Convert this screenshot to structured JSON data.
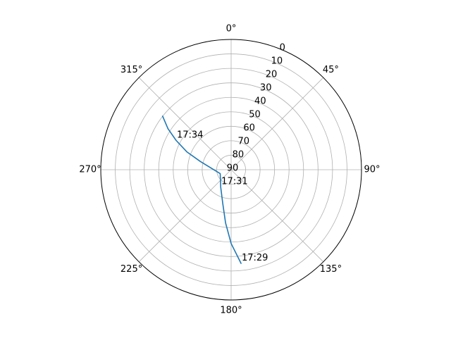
{
  "chart_data": {
    "type": "line",
    "projection": "polar",
    "theta_zero": "N",
    "theta_direction": "clockwise",
    "theta_ticks_deg": [
      0,
      45,
      90,
      135,
      180,
      225,
      270,
      315
    ],
    "theta_tick_labels": [
      "0°",
      "45°",
      "90°",
      "135°",
      "180°",
      "225°",
      "270°",
      "315°"
    ],
    "r_axis": "elevation",
    "r_ticks": [
      0,
      10,
      20,
      30,
      40,
      50,
      60,
      70,
      80,
      90
    ],
    "r_tick_labels": [
      "0",
      "10",
      "20",
      "30",
      "40",
      "50",
      "60",
      "70",
      "80",
      "90"
    ],
    "r_range": [
      90,
      0
    ],
    "grid": true,
    "series": [
      {
        "color": "#1f77b4",
        "points": [
          {
            "az": 174,
            "el": 25
          },
          {
            "az": 180,
            "el": 39
          },
          {
            "az": 186,
            "el": 53
          },
          {
            "az": 194,
            "el": 66
          },
          {
            "az": 211,
            "el": 76
          },
          {
            "az": 250,
            "el": 82
          },
          {
            "az": 285,
            "el": 68
          },
          {
            "az": 292,
            "el": 57
          },
          {
            "az": 298,
            "el": 47
          },
          {
            "az": 303,
            "el": 38
          },
          {
            "az": 308,
            "el": 30
          }
        ]
      }
    ],
    "annotations": [
      {
        "text": "17:29",
        "az": 174,
        "el": 25
      },
      {
        "text": "17:31",
        "az": 211,
        "el": 76
      },
      {
        "text": "17:34",
        "az": 298,
        "el": 47
      }
    ]
  }
}
